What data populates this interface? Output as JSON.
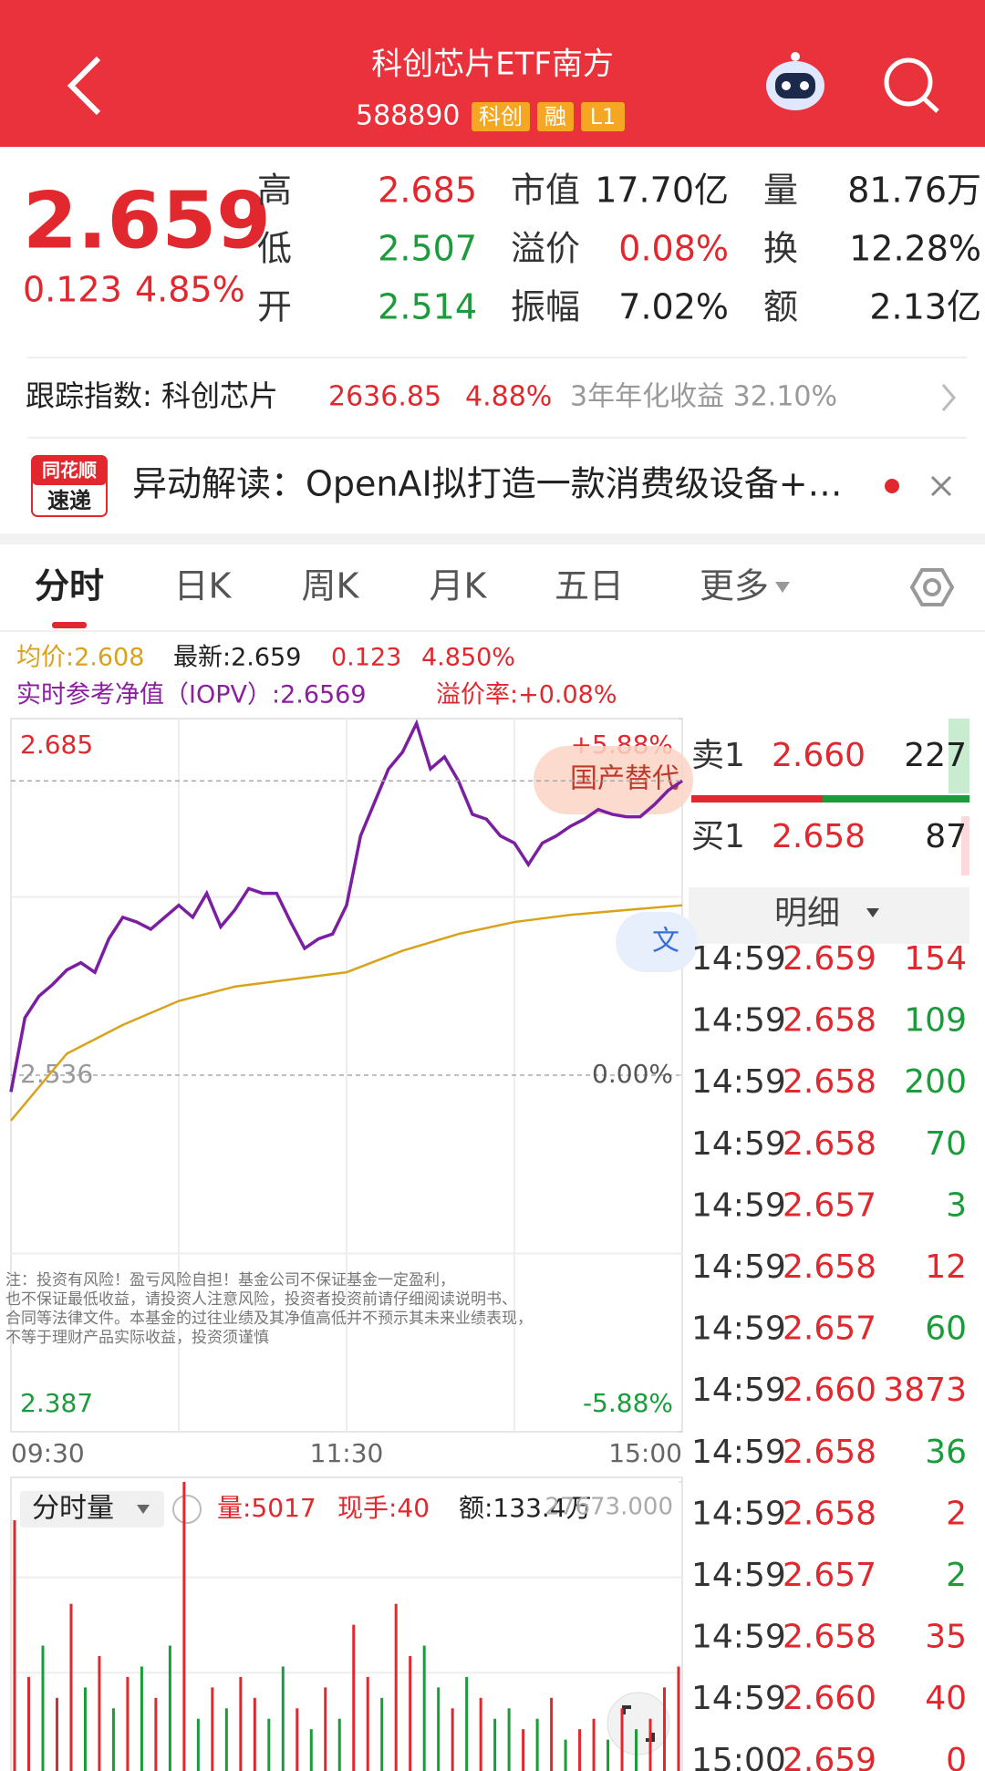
{
  "header": {
    "title": "科创芯片ETF南方",
    "code": "588890",
    "tags": [
      "科创",
      "融",
      "L1"
    ]
  },
  "quote": {
    "price": "2.659",
    "change": "0.123",
    "change_pct": "4.85%",
    "stats": [
      {
        "label": "高",
        "value": "2.685",
        "color": "#e0282e"
      },
      {
        "label": "市值",
        "value": "17.70亿",
        "color": "#222222"
      },
      {
        "label": "量",
        "value": "81.76万",
        "color": "#222222"
      },
      {
        "label": "低",
        "value": "2.507",
        "color": "#1a9c3a"
      },
      {
        "label": "溢价",
        "value": "0.08%",
        "color": "#e0282e"
      },
      {
        "label": "换",
        "value": "12.28%",
        "color": "#222222"
      },
      {
        "label": "开",
        "value": "2.514",
        "color": "#1a9c3a"
      },
      {
        "label": "振幅",
        "value": "7.02%",
        "color": "#222222"
      },
      {
        "label": "额",
        "value": "2.13亿",
        "color": "#222222"
      }
    ]
  },
  "index": {
    "label": "跟踪指数: 科创芯片",
    "value": "2636.85",
    "change_pct": "4.88%",
    "annual": "3年年化收益 32.10%"
  },
  "news": {
    "badge_top": "同花顺",
    "badge_bottom": "速递",
    "text": "异动解读：OpenAI拟打造一款消费级设备+…"
  },
  "tabs": [
    "分时",
    "日K",
    "周K",
    "月K",
    "五日",
    "更多"
  ],
  "info": {
    "avg": "均价:2.608",
    "latest": "最新:2.659",
    "change": "0.123",
    "change_pct": "4.850%",
    "iopv": "实时参考净值（IOPV）:2.6569",
    "premium": "溢价率:+0.08%"
  },
  "chart_data": [
    {
      "type": "line",
      "ylim": [
        2.387,
        2.685
      ],
      "yticks": [
        2.387,
        2.536,
        2.685
      ],
      "y2lim": [
        -5.88,
        5.88
      ],
      "y2ticks": [
        {
          "value": -5.88,
          "label": "-5.88%"
        },
        {
          "value": 0,
          "label": "0.00%"
        },
        {
          "value": 5.88,
          "label": "+5.88%"
        }
      ],
      "xtick_labels": [
        "09:30",
        "11:30",
        "15:00"
      ],
      "series": [
        {
          "name": "最新",
          "color": "#7b1fa2",
          "values": [
            2.529,
            2.56,
            2.569,
            2.574,
            2.58,
            2.583,
            2.579,
            2.593,
            2.602,
            2.6,
            2.597,
            2.602,
            2.607,
            2.602,
            2.612,
            2.598,
            2.605,
            2.614,
            2.612,
            2.612,
            2.6,
            2.589,
            2.593,
            2.595,
            2.607,
            2.636,
            2.65,
            2.664,
            2.671,
            2.683,
            2.664,
            2.669,
            2.659,
            2.645,
            2.643,
            2.636,
            2.633,
            2.624,
            2.633,
            2.636,
            2.64,
            2.643,
            2.647,
            2.645,
            2.644,
            2.644,
            2.649,
            2.655,
            2.659
          ]
        },
        {
          "name": "均价",
          "color": "#d9a21b",
          "values": [
            2.517,
            2.545,
            2.557,
            2.567,
            2.573,
            2.576,
            2.579,
            2.588,
            2.595,
            2.6,
            2.603,
            2.605,
            2.607
          ]
        }
      ],
      "overlays": [
        "国产替代",
        "文"
      ],
      "disclaimer": [
        "注：投资有风险！盈亏风险自担！基金公司不保证基金一定盈利，",
        "也不保证最低收益，请投资人注意风险，投资者投资前请仔细阅读说明书、",
        "合同等法律文件。本基金的过往业绩及其净值高低并不预示其未来业绩表现，",
        "不等于理财产品实际收益，投资须谨慎"
      ]
    },
    {
      "type": "bar",
      "title": "分时量",
      "volume": "量:5017",
      "hand": "现手:40",
      "amount": "额:133.4万",
      "ylim": [
        0,
        27673
      ],
      "yticks": [
        {
          "value": 27673,
          "label": "27673.000"
        }
      ],
      "up_color": "#e0282e",
      "down_color": "#1a9c3a",
      "values": [
        24000,
        9000,
        12000,
        7000,
        16000,
        8000,
        11000,
        6000,
        9000,
        10000,
        7000,
        12000,
        27673,
        5000,
        8000,
        6000,
        9000,
        7000,
        5000,
        10000,
        6000,
        4000,
        8000,
        5000,
        14000,
        9000,
        7000,
        16000,
        11000,
        12000,
        8000,
        6000,
        9000,
        7000,
        5000,
        6000,
        4000,
        5000,
        7000,
        3000,
        4000,
        5000,
        3000,
        6000,
        4000,
        5000,
        8000,
        10000
      ],
      "up": [
        true,
        true,
        false,
        true,
        true,
        false,
        true,
        false,
        true,
        false,
        true,
        false,
        true,
        false,
        true,
        false,
        true,
        true,
        false,
        false,
        true,
        false,
        true,
        false,
        true,
        true,
        false,
        true,
        true,
        false,
        false,
        true,
        false,
        true,
        false,
        false,
        true,
        false,
        true,
        false,
        true,
        true,
        false,
        true,
        false,
        true,
        true,
        true
      ]
    }
  ],
  "orderbook": {
    "sell": {
      "label": "卖1",
      "price": "2.660",
      "volume": "227"
    },
    "buy": {
      "label": "买1",
      "price": "2.658",
      "volume": "87"
    },
    "detail": "明细"
  },
  "trades": [
    {
      "time": "14:59",
      "price": "2.659",
      "volume": "154",
      "color": "#e0282e"
    },
    {
      "time": "14:59",
      "price": "2.658",
      "volume": "109",
      "color": "#1a9c3a"
    },
    {
      "time": "14:59",
      "price": "2.658",
      "volume": "200",
      "color": "#1a9c3a"
    },
    {
      "time": "14:59",
      "price": "2.658",
      "volume": "70",
      "color": "#1a9c3a"
    },
    {
      "time": "14:59",
      "price": "2.657",
      "volume": "3",
      "color": "#1a9c3a"
    },
    {
      "time": "14:59",
      "price": "2.658",
      "volume": "12",
      "color": "#e0282e"
    },
    {
      "time": "14:59",
      "price": "2.657",
      "volume": "60",
      "color": "#1a9c3a"
    },
    {
      "time": "14:59",
      "price": "2.660",
      "volume": "3873",
      "color": "#e0282e"
    },
    {
      "time": "14:59",
      "price": "2.658",
      "volume": "36",
      "color": "#1a9c3a"
    },
    {
      "time": "14:59",
      "price": "2.658",
      "volume": "2",
      "color": "#e0282e"
    },
    {
      "time": "14:59",
      "price": "2.657",
      "volume": "2",
      "color": "#1a9c3a"
    },
    {
      "time": "14:59",
      "price": "2.658",
      "volume": "35",
      "color": "#e0282e"
    },
    {
      "time": "14:59",
      "price": "2.660",
      "volume": "40",
      "color": "#e0282e"
    },
    {
      "time": "15:00",
      "price": "2.659",
      "volume": "0",
      "color": "#e0282e"
    }
  ]
}
